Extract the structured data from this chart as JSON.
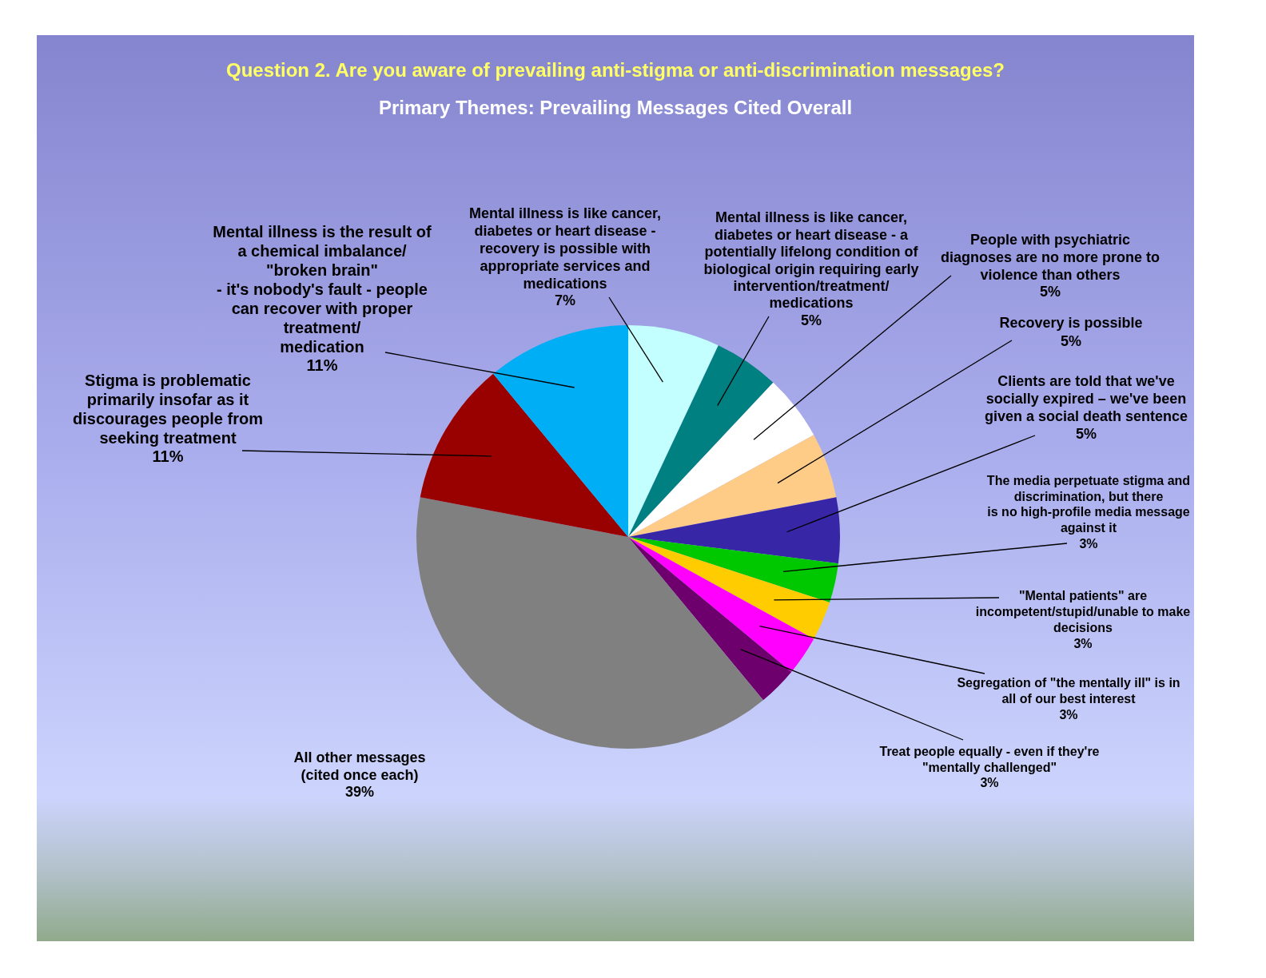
{
  "chart_data": {
    "type": "pie",
    "title": "Question 2. Are you aware of prevailing anti-stigma or anti-discrimination messages?",
    "subtitle": "Primary Themes: Prevailing Messages Cited Overall",
    "categories": [
      "Mental illness is like cancer, diabetes or heart disease - recovery is possible with appropriate services and medications",
      "Mental illness is like cancer, diabetes or heart disease - a potentially lifelong condition of biological origin requiring early intervention/treatment/ medications",
      "People with psychiatric diagnoses are no more prone to violence than others",
      "Recovery is possible",
      "Clients are told that we've socially expired – we've been given a social death sentence",
      "The media perpetuate stigma and discrimination, but there is no high-profile media message against it",
      "\"Mental patients\" are incompetent/stupid/unable to make decisions",
      "Segregation of \"the mentally ill\" is in all of our best interest",
      "Treat people equally - even if they're \"mentally challenged\"",
      "All other messages (cited once each)",
      "Stigma is problematic primarily insofar as it discourages people from seeking treatment",
      "Mental illness is the result of a chemical imbalance/ \"broken brain\" - it's nobody's fault - people can recover with proper treatment/ medication"
    ],
    "values": [
      7,
      5,
      5,
      5,
      5,
      3,
      3,
      3,
      3,
      39,
      11,
      11
    ],
    "value_labels": [
      "7%",
      "5%",
      "5%",
      "5%",
      "5%",
      "3%",
      "3%",
      "3%",
      "3%",
      "39%",
      "11%",
      "11%"
    ],
    "colors": [
      "#c4ffff",
      "#008080",
      "#ffffff",
      "#ffcc88",
      "#3726a6",
      "#00c800",
      "#ffcc00",
      "#ff00ff",
      "#6d006d",
      "#808080",
      "#990000",
      "#00aef5"
    ]
  }
}
